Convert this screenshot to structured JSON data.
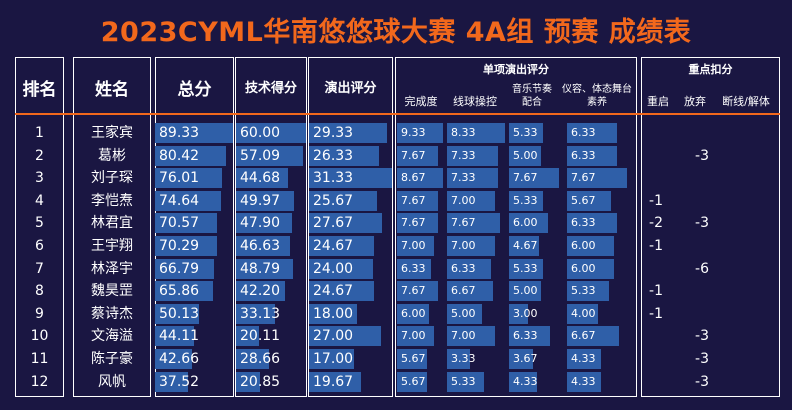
{
  "title": "2023CYML华南悠悠球大赛 4A组 预赛 成绩表",
  "headers": {
    "rank": "排名",
    "name": "姓名",
    "total": "总分",
    "tech": "技术得分",
    "perf": "演出评分",
    "sub_group": "单项演出评分",
    "sub1": "完成度",
    "sub2": "线球操控",
    "sub3": "音乐节奏配合",
    "sub4": "仪容、体态舞台素养",
    "ded_group": "重点扣分",
    "ded1": "重启",
    "ded2": "放弃",
    "ded3": "断线/解体"
  },
  "bar_max": {
    "total": 90,
    "tech": 60,
    "perf": 31.33,
    "sub": 8.67
  },
  "colors": {
    "bar": "#2f5fa8",
    "title": "#f2681c",
    "background": "#1a1642"
  },
  "rows": [
    {
      "rank": "1",
      "name": "王家宾",
      "total": "89.33",
      "tech": "60.00",
      "perf": "29.33",
      "s1": "9.33",
      "s2": "8.33",
      "s3": "5.33",
      "s4": "6.33",
      "d1": "",
      "d2": "",
      "d3": ""
    },
    {
      "rank": "2",
      "name": "葛彬",
      "total": "80.42",
      "tech": "57.09",
      "perf": "26.33",
      "s1": "7.67",
      "s2": "7.33",
      "s3": "5.00",
      "s4": "6.33",
      "d1": "",
      "d2": "-3",
      "d3": ""
    },
    {
      "rank": "3",
      "name": "刘子琛",
      "total": "76.01",
      "tech": "44.68",
      "perf": "31.33",
      "s1": "8.67",
      "s2": "7.33",
      "s3": "7.67",
      "s4": "7.67",
      "d1": "",
      "d2": "",
      "d3": ""
    },
    {
      "rank": "4",
      "name": "李恺焘",
      "total": "74.64",
      "tech": "49.97",
      "perf": "25.67",
      "s1": "7.67",
      "s2": "7.00",
      "s3": "5.33",
      "s4": "5.67",
      "d1": "-1",
      "d2": "",
      "d3": ""
    },
    {
      "rank": "5",
      "name": "林君宜",
      "total": "70.57",
      "tech": "47.90",
      "perf": "27.67",
      "s1": "7.67",
      "s2": "7.67",
      "s3": "6.00",
      "s4": "6.33",
      "d1": "-2",
      "d2": "-3",
      "d3": ""
    },
    {
      "rank": "6",
      "name": "王宇翔",
      "total": "70.29",
      "tech": "46.63",
      "perf": "24.67",
      "s1": "7.00",
      "s2": "7.00",
      "s3": "4.67",
      "s4": "6.00",
      "d1": "-1",
      "d2": "",
      "d3": ""
    },
    {
      "rank": "7",
      "name": "林泽宇",
      "total": "66.79",
      "tech": "48.79",
      "perf": "24.00",
      "s1": "6.33",
      "s2": "6.33",
      "s3": "5.33",
      "s4": "6.00",
      "d1": "",
      "d2": "-6",
      "d3": ""
    },
    {
      "rank": "8",
      "name": "魏昊罡",
      "total": "65.86",
      "tech": "42.20",
      "perf": "24.67",
      "s1": "7.67",
      "s2": "6.67",
      "s3": "5.00",
      "s4": "5.33",
      "d1": "-1",
      "d2": "",
      "d3": ""
    },
    {
      "rank": "9",
      "name": "蔡诗杰",
      "total": "50.13",
      "tech": "33.13",
      "perf": "18.00",
      "s1": "6.00",
      "s2": "5.00",
      "s3": "3.00",
      "s4": "4.00",
      "d1": "-1",
      "d2": "",
      "d3": ""
    },
    {
      "rank": "10",
      "name": "文海溢",
      "total": "44.11",
      "tech": "20.11",
      "perf": "27.00",
      "s1": "7.00",
      "s2": "7.00",
      "s3": "6.33",
      "s4": "6.67",
      "d1": "",
      "d2": "-3",
      "d3": ""
    },
    {
      "rank": "11",
      "name": "陈子豪",
      "total": "42.66",
      "tech": "28.66",
      "perf": "17.00",
      "s1": "5.67",
      "s2": "3.33",
      "s3": "3.67",
      "s4": "4.33",
      "d1": "",
      "d2": "-3",
      "d3": ""
    },
    {
      "rank": "12",
      "name": "风帆",
      "total": "37.52",
      "tech": "20.85",
      "perf": "19.67",
      "s1": "5.67",
      "s2": "5.33",
      "s3": "4.33",
      "s4": "4.33",
      "d1": "",
      "d2": "-3",
      "d3": ""
    }
  ]
}
